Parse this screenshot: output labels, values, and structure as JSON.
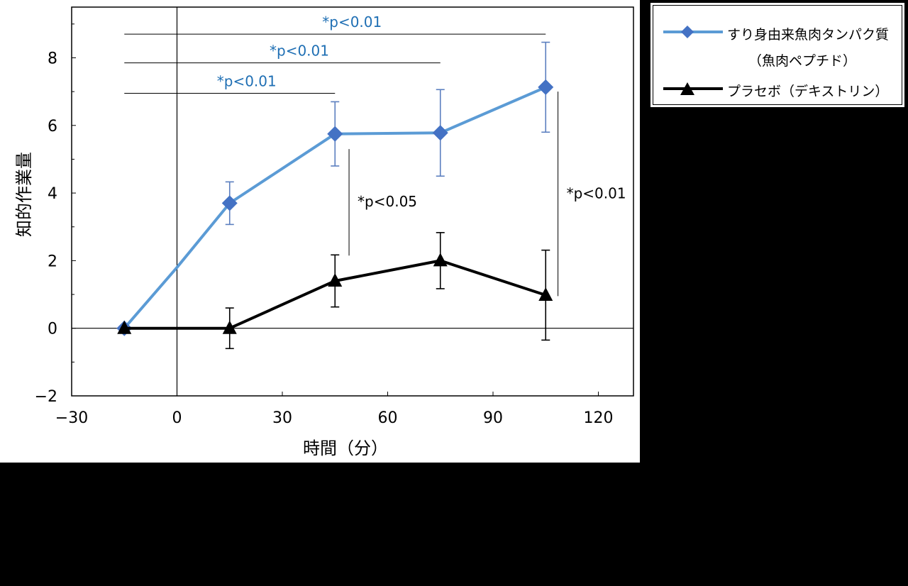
{
  "chart_data": {
    "type": "line",
    "xlabel": "時間（分）",
    "ylabel": "知的作業量",
    "xlim": [
      -30,
      130
    ],
    "ylim": [
      -2,
      9.5
    ],
    "xticks": [
      -30,
      0,
      30,
      60,
      90,
      120
    ],
    "xtick_labels": [
      "−30",
      "0",
      "30",
      "60",
      "90",
      "120"
    ],
    "yticks": [
      -2,
      0,
      2,
      4,
      6,
      8
    ],
    "ytick_labels": [
      "−2",
      "0",
      "2",
      "4",
      "6",
      "8"
    ],
    "grid": false,
    "legend_position": "outside-top-right",
    "series": [
      {
        "name": "すり身由来魚肉タンパク質",
        "name_line2": "（魚肉ペプチド）",
        "color": "#5B9BD5",
        "marker": "diamond",
        "marker_color": "#4472C4",
        "x": [
          -15,
          15,
          45,
          75,
          105
        ],
        "y": [
          0,
          3.7,
          5.75,
          5.78,
          7.13
        ],
        "err": [
          0,
          0.63,
          0.95,
          1.28,
          1.33
        ],
        "start_point": {
          "x": 0,
          "y": 1.8
        }
      },
      {
        "name": "プラセボ（デキストリン）",
        "color": "#000000",
        "marker": "triangle",
        "marker_color": "#000000",
        "x": [
          -15,
          15,
          45,
          75,
          105
        ],
        "y": [
          0,
          0,
          1.4,
          2.0,
          0.98
        ],
        "err": [
          0,
          0.6,
          0.77,
          0.83,
          1.33
        ]
      }
    ],
    "annotations": [
      {
        "text": "*p<0.01",
        "color": "#1F6FB4",
        "x_from": -15,
        "x_to": 105,
        "y": 8.7
      },
      {
        "text": "*p<0.01",
        "color": "#1F6FB4",
        "x_from": -15,
        "x_to": 75,
        "y": 7.85
      },
      {
        "text": "*p<0.01",
        "color": "#1F6FB4",
        "x_from": -15,
        "x_to": 45,
        "y": 6.95
      },
      {
        "text": "*p<0.05",
        "color": "#000000",
        "x": 49,
        "y_from": 2.15,
        "y_to": 5.3
      },
      {
        "text": "*p<0.01",
        "color": "#000000",
        "x": 108.5,
        "y_from": 0.95,
        "y_to": 7.0
      }
    ]
  }
}
